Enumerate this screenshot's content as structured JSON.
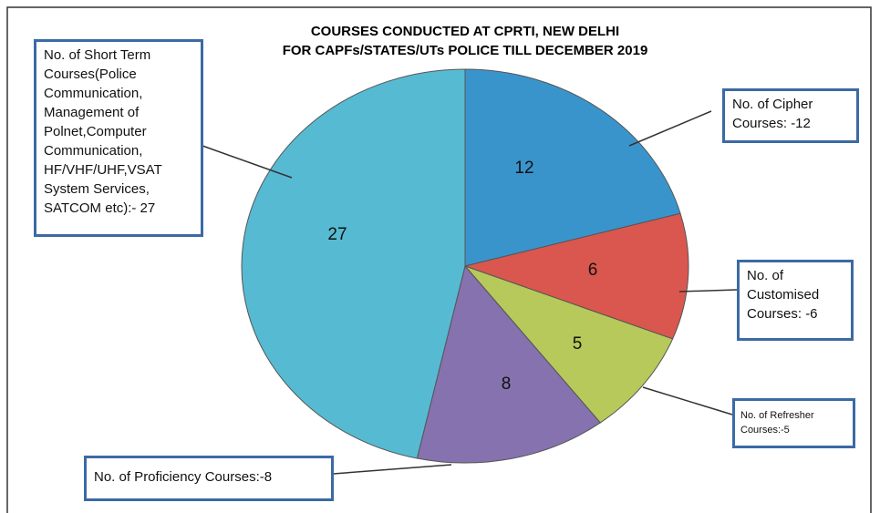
{
  "chart_data": {
    "type": "pie",
    "title": "COURSES CONDUCTED AT CPRTI, NEW DELHI",
    "subtitle": "FOR CAPFs/STATES/UTs POLICE TILL DECEMBER 2019",
    "values": [
      12,
      6,
      5,
      8,
      27
    ],
    "labels": [
      "No. of Cipher Courses: -12",
      "No. of Customised Courses: -6",
      "No. of Refresher Courses:-5",
      "No. of Proficiency Courses:-8",
      "No. of Short Term Courses(Police Communication, Management of Polnet,Computer Communication, HF/VHF/UHF,VSAT System Services, SATCOM etc):- 27"
    ],
    "colors": [
      "#3a94cc",
      "#d9574f",
      "#b6c95a",
      "#8572ae",
      "#57bad3"
    ]
  }
}
